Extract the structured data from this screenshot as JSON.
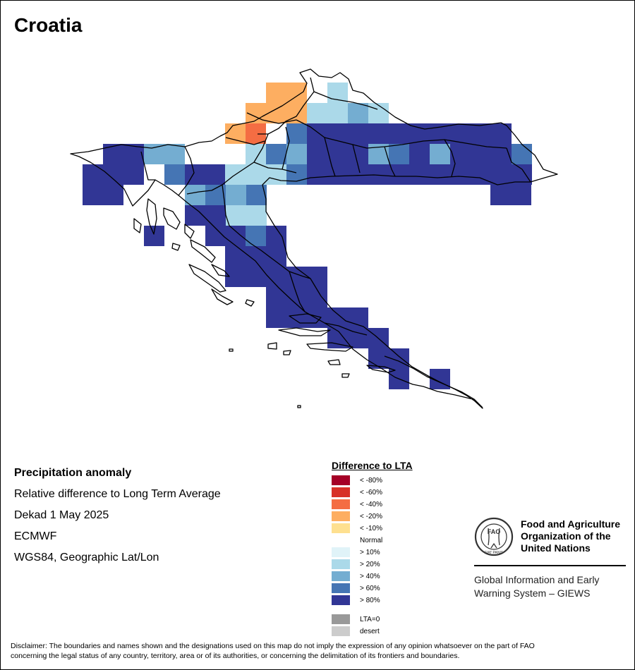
{
  "title": "Croatia",
  "info": {
    "heading": "Precipitation anomaly",
    "line1": "Relative difference to Long Term Average",
    "line2": "Dekad 1 May 2025",
    "line3": "ECMWF",
    "line4": "WGS84, Geographic Lat/Lon"
  },
  "legend": {
    "title": "Difference to LTA",
    "items": [
      {
        "label": "< -80%",
        "color": "#a50026"
      },
      {
        "label": "< -60%",
        "color": "#d73027"
      },
      {
        "label": "< -40%",
        "color": "#f46d43"
      },
      {
        "label": "< -20%",
        "color": "#fdae61"
      },
      {
        "label": "< -10%",
        "color": "#fee090"
      },
      {
        "label": "Normal",
        "color": "#ffffff"
      },
      {
        "label": "> 10%",
        "color": "#e0f3f8"
      },
      {
        "label": "> 20%",
        "color": "#abd9e9"
      },
      {
        "label": "> 40%",
        "color": "#74add1"
      },
      {
        "label": "> 60%",
        "color": "#4575b4"
      },
      {
        "label": "> 80%",
        "color": "#313695"
      },
      {
        "label": "LTA=0",
        "color": "#999999"
      },
      {
        "label": "desert",
        "color": "#cccccc"
      }
    ]
  },
  "fao": {
    "name_line1": "Food and Agriculture",
    "name_line2": "Organization of the",
    "name_line3": "United Nations",
    "giews_line1": "Global Information and Early",
    "giews_line2": "Warning System – GIEWS",
    "logo_letters": "FAO",
    "logo_motto": "FIAT PANIS"
  },
  "disclaimer": {
    "line1": "Disclaimer: The boundaries and names shown and the designations used on this map do not imply the expression of any opinion whatsoever on the part of FAO",
    "line2": "concerning the legal status of any country, territory, area or of its authorities, or concerning the delimitation of its frontiers and boundaries."
  }
}
